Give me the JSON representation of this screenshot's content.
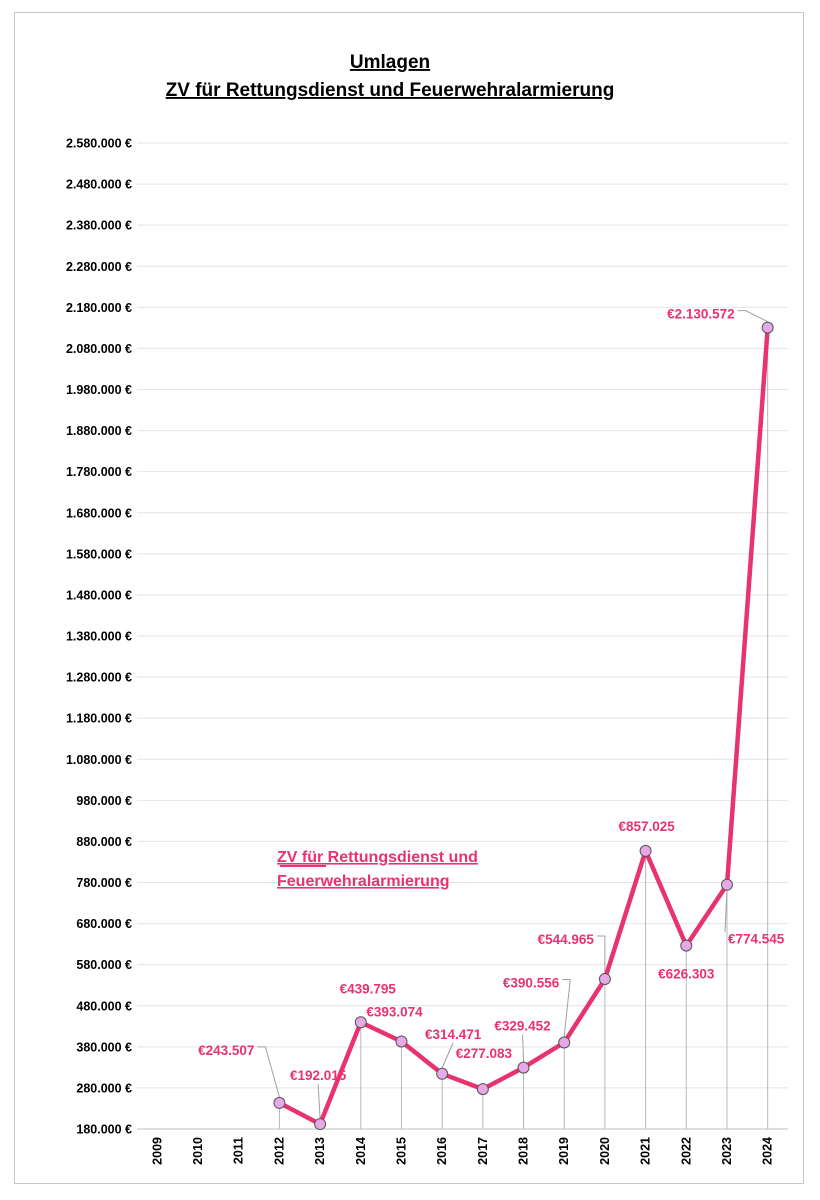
{
  "chart_data": {
    "type": "line",
    "title_lines": [
      "Umlagen",
      "ZV für Rettungsdienst und Feuerwehralarmierung"
    ],
    "categories": [
      "2009",
      "2010",
      "2011",
      "2012",
      "2013",
      "2014",
      "2015",
      "2016",
      "2017",
      "2018",
      "2019",
      "2020",
      "2021",
      "2022",
      "2023",
      "2024"
    ],
    "series": [
      {
        "name": "ZV  für Rettungsdienst und Feuerwehralarmierung",
        "legend_lines": [
          "ZV  für Rettungsdienst und",
          "Feuerwehralarmierung"
        ],
        "color": "#e8336e",
        "values": [
          null,
          null,
          null,
          243507,
          192015,
          439795,
          393074,
          314471,
          277083,
          329452,
          390556,
          544965,
          857025,
          626303,
          774545,
          2130572
        ],
        "data_labels": [
          null,
          null,
          null,
          "€243.507",
          "€192.015",
          "€439.795",
          "€393.074",
          "€314.471",
          "€277.083",
          "€329.452",
          "€390.556",
          "€544.965",
          "€857.025",
          "€626.303",
          "€774.545",
          "€2.130.572"
        ]
      }
    ],
    "y_ticks": [
      "180.000 €",
      "280.000 €",
      "380.000 €",
      "480.000 €",
      "580.000 €",
      "680.000 €",
      "780.000 €",
      "880.000 €",
      "980.000 €",
      "1.080.000 €",
      "1.180.000 €",
      "1.280.000 €",
      "1.380.000 €",
      "1.480.000 €",
      "1.580.000 €",
      "1.680.000 €",
      "1.780.000 €",
      "1.880.000 €",
      "1.980.000 €",
      "2.080.000 €",
      "2.180.000 €",
      "2.280.000 €",
      "2.380.000 €",
      "2.480.000 €",
      "2.580.000 €"
    ],
    "ylim": [
      180000,
      2580000
    ],
    "y_step": 100000,
    "grid": true,
    "legend_position": "inside-left",
    "marker_color": "#e6a8e6"
  }
}
